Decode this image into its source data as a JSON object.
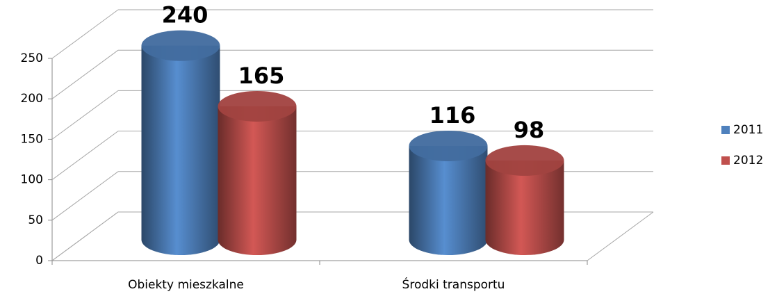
{
  "chart_data": {
    "type": "bar3d-cylinder",
    "categories": [
      "Obiekty mieszkalne",
      "Środki transportu"
    ],
    "series": [
      {
        "name": "2011",
        "color": "#4f81bd",
        "values": [
          240,
          116
        ]
      },
      {
        "name": "2012",
        "color": "#c0504d",
        "values": [
          165,
          98
        ]
      }
    ],
    "ylim": [
      0,
      250
    ],
    "yticks": [
      0,
      50,
      100,
      150,
      200,
      250
    ],
    "grid": true,
    "legend": "right"
  }
}
